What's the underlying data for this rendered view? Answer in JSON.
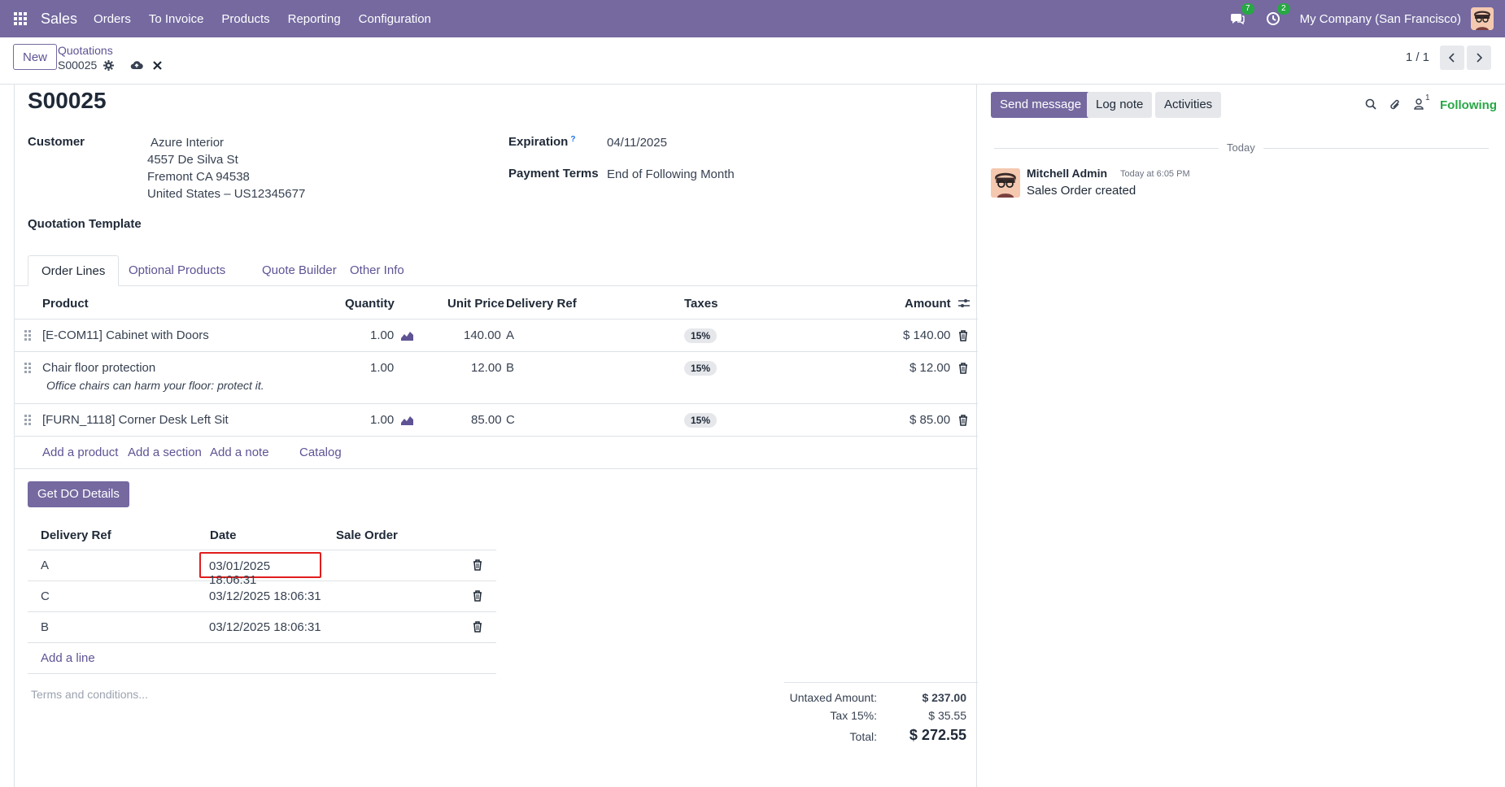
{
  "navbar": {
    "app_name": "Sales",
    "menu": [
      "Orders",
      "To Invoice",
      "Products",
      "Reporting",
      "Configuration"
    ],
    "messages_count": "7",
    "activities_count": "2",
    "company": "My Company (San Francisco)",
    "icons": [
      "apps-grid-icon",
      "chat-icon",
      "clock-icon",
      "user-avatar"
    ]
  },
  "control_panel": {
    "new_label": "New",
    "breadcrumb_parent": "Quotations",
    "record_name": "S00025",
    "pager": "1 / 1",
    "icons": [
      "gear-icon",
      "cloud-save-icon",
      "discard-icon",
      "chevron-left-icon",
      "chevron-right-icon"
    ]
  },
  "form": {
    "title": "S00025",
    "customer_label": "Customer",
    "customer_name": "Azure Interior",
    "address_line1": "4557 De Silva St",
    "address_line2": "Fremont CA 94538",
    "address_line3": "United States – US12345677",
    "expiration_label": "Expiration",
    "help_mark": "?",
    "expiration_value": "04/11/2025",
    "payment_terms_label": "Payment Terms",
    "payment_terms_value": "End of Following Month",
    "quotation_template_label": "Quotation Template",
    "tabs": [
      "Order Lines",
      "Optional Products",
      "Quote Builder",
      "Other Info"
    ],
    "order_lines": {
      "headers": {
        "product": "Product",
        "quantity": "Quantity",
        "unit_price": "Unit Price",
        "delivery_ref": "Delivery Ref",
        "taxes": "Taxes",
        "amount": "Amount"
      },
      "rows": [
        {
          "product": "[E-COM11] Cabinet with Doors",
          "note": "",
          "quantity": "1.00",
          "unit_price": "140.00",
          "delivery_ref": "A",
          "tax": "15%",
          "amount": "$ 140.00"
        },
        {
          "product": "Chair floor protection",
          "note": "Office chairs can harm your floor: protect it.",
          "quantity": "1.00",
          "unit_price": "12.00",
          "delivery_ref": "B",
          "tax": "15%",
          "amount": "$ 12.00"
        },
        {
          "product": "[FURN_1118] Corner Desk Left Sit",
          "note": "",
          "quantity": "1.00",
          "unit_price": "85.00",
          "delivery_ref": "C",
          "tax": "15%",
          "amount": "$ 85.00"
        }
      ],
      "add_product": "Add a product",
      "add_section": "Add a section",
      "add_note": "Add a note",
      "catalog": "Catalog"
    },
    "get_do_details_label": "Get DO Details",
    "delivery_table": {
      "headers": {
        "delivery_ref": "Delivery Ref",
        "date": "Date",
        "sale_order": "Sale Order"
      },
      "rows": [
        {
          "delivery_ref": "A",
          "date": "03/01/2025 18:06:31",
          "sale_order": ""
        },
        {
          "delivery_ref": "C",
          "date": "03/12/2025 18:06:31",
          "sale_order": ""
        },
        {
          "delivery_ref": "B",
          "date": "03/12/2025 18:06:31",
          "sale_order": ""
        }
      ],
      "add_line": "Add a line"
    },
    "terms_placeholder": "Terms and conditions...",
    "totals": {
      "untaxed_label": "Untaxed Amount:",
      "untaxed_value": "$ 237.00",
      "tax_label": "Tax 15%:",
      "tax_value": "$ 35.55",
      "total_label": "Total:",
      "total_value": "$ 272.55"
    }
  },
  "chatter": {
    "send_message": "Send message",
    "log_note": "Log note",
    "activities": "Activities",
    "followers_count": "1",
    "following": "Following",
    "date_separator": "Today",
    "messages": [
      {
        "author": "Mitchell Admin",
        "time": "Today at 6:05 PM",
        "body": "Sales Order created"
      }
    ]
  },
  "colors": {
    "navbar": "#7569a0",
    "primary_button": "#7569a0",
    "link": "#5f5394",
    "following": "#28a745",
    "highlight_box": "#e11d1d"
  }
}
